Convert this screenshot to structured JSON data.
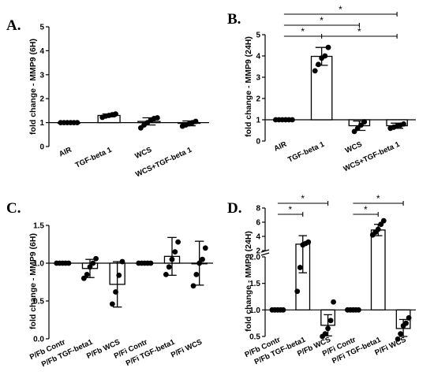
{
  "chart_data": [
    {
      "panel": "A.",
      "type": "bar",
      "ylabel": "fold change - MMP9 (6H)",
      "categories": [
        "AIR",
        "TGF-beta 1",
        "WCS",
        "WCS+TGF-beta 1"
      ],
      "values": [
        1.0,
        1.3,
        1.05,
        0.97
      ],
      "errors": [
        0.01,
        0.06,
        0.15,
        0.1
      ],
      "points": [
        [
          1,
          1,
          1,
          1,
          1,
          1
        ],
        [
          1.22,
          1.27,
          1.3,
          1.33,
          1.36
        ],
        [
          0.78,
          0.9,
          1.0,
          1.1,
          1.17,
          1.2
        ],
        [
          0.85,
          0.9,
          0.95,
          1.0,
          1.05
        ]
      ],
      "ylim": [
        0,
        5
      ],
      "yticks": [
        "0",
        "1",
        "2",
        "3",
        "4",
        "5"
      ],
      "reference_line": 1,
      "significance": []
    },
    {
      "panel": "B.",
      "type": "bar",
      "ylabel": "fold change - MMP9 (24H)",
      "categories": [
        "AIR",
        "TGF-beta 1",
        "WCS",
        "WCS+TGF-beta 1"
      ],
      "values": [
        1.0,
        3.98,
        0.72,
        0.72
      ],
      "errors": [
        0.01,
        0.42,
        0.22,
        0.12
      ],
      "points": [
        [
          1,
          1,
          1,
          1,
          1,
          1
        ],
        [
          3.3,
          3.6,
          3.9,
          4.0,
          4.4
        ],
        [
          0.45,
          0.6,
          0.75,
          0.9
        ],
        [
          0.6,
          0.65,
          0.7,
          0.75,
          0.8
        ]
      ],
      "ylim": [
        0,
        5
      ],
      "yticks": [
        "0",
        "1",
        "2",
        "3",
        "4",
        "5"
      ],
      "reference_line": 1,
      "significance": [
        {
          "from": 0,
          "to": 3,
          "label": "*"
        },
        {
          "from": 0,
          "to": 2,
          "label": "*"
        },
        {
          "from": 0,
          "to": 1,
          "label": "*"
        },
        {
          "from": 1,
          "to": 3,
          "label": "*"
        }
      ]
    },
    {
      "panel": "C.",
      "type": "bar",
      "ylabel": "fold change - MMP9 (6H)",
      "categories": [
        "P/Fb Contr",
        "P/Fb TGF-beta1",
        "P/Fb WCS",
        "P/Fi Contr",
        "P/Fi TGF-beta1",
        "P/Fi WCS"
      ],
      "values": [
        1.0,
        0.93,
        0.72,
        1.0,
        1.09,
        1.0
      ],
      "errors": [
        0.01,
        0.12,
        0.3,
        0.01,
        0.25,
        0.29
      ],
      "points": [
        [
          1,
          1,
          1,
          1,
          1
        ],
        [
          0.8,
          0.85,
          0.95,
          1.0,
          1.06
        ],
        [
          0.46,
          0.62,
          0.84,
          1.02
        ],
        [
          1,
          1,
          1,
          1,
          1
        ],
        [
          0.85,
          0.95,
          1.05,
          1.15,
          1.28
        ],
        [
          0.7,
          0.85,
          1.0,
          1.05,
          1.2
        ]
      ],
      "ylim": [
        0.0,
        1.5
      ],
      "yticks": [
        "0.0",
        "0.5",
        "1.0",
        "1.5"
      ],
      "reference_line": 1,
      "significance": []
    },
    {
      "panel": "D.",
      "type": "bar",
      "ylabel": "fold change - MMP9 (24H)",
      "categories": [
        "P/Fb Contr",
        "P/Fb TGF-beta1",
        "P/Fb WCS",
        "P/Fi Contr",
        "P/Fi TGF-beta1",
        "P/Fi WCS"
      ],
      "values": [
        1.0,
        2.9,
        0.71,
        1.0,
        4.9,
        0.65
      ],
      "errors": [
        0.01,
        1.2,
        0.2,
        0.01,
        0.8,
        0.17
      ],
      "points": [
        [
          1,
          1,
          1,
          1,
          1
        ],
        [
          1.35,
          1.8,
          2.8,
          3.0,
          3.2
        ],
        [
          0.5,
          0.55,
          0.65,
          0.8,
          1.15
        ],
        [
          1,
          1,
          1,
          1,
          1
        ],
        [
          4.2,
          4.6,
          5.0,
          5.7,
          6.2
        ],
        [
          0.45,
          0.55,
          0.7,
          0.75,
          0.85
        ]
      ],
      "yticks_lower": [
        "0.5",
        "1.0",
        "1.5",
        "2.0"
      ],
      "yticks_upper": [
        "2",
        "4",
        "6",
        "8"
      ],
      "broken_axis": true,
      "reference_line": 1,
      "significance": [
        {
          "from": 0,
          "to": 2,
          "label": "*"
        },
        {
          "from": 0,
          "to": 1,
          "label": "*"
        },
        {
          "from": 3,
          "to": 5,
          "label": "*"
        },
        {
          "from": 3,
          "to": 4,
          "label": "*"
        }
      ]
    }
  ]
}
